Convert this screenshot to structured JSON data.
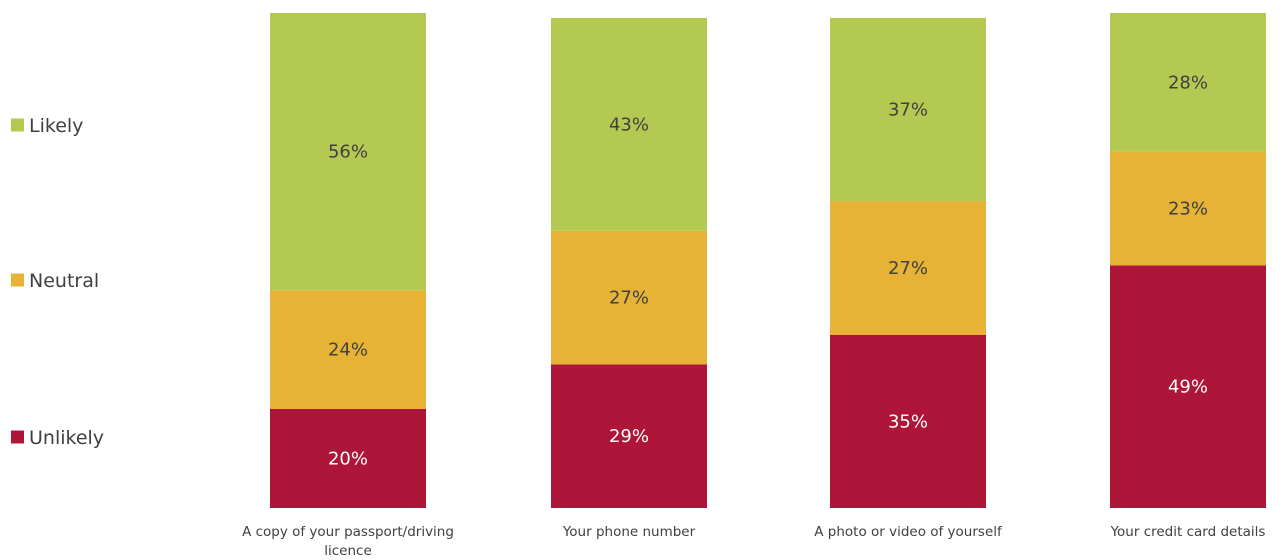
{
  "chart_data": {
    "type": "bar",
    "stacked": true,
    "normalized_percent": true,
    "categories": [
      [
        "A copy of your passport/driving",
        "licence"
      ],
      [
        "Your phone number"
      ],
      [
        "A photo or video of yourself"
      ],
      [
        "Your credit card details"
      ]
    ],
    "series": [
      {
        "name": "Unlikely",
        "color": "#ad1639",
        "label_color": "#ffffff",
        "values": [
          20,
          29,
          35,
          49
        ]
      },
      {
        "name": "Neutral",
        "color": "#e6b336",
        "label_color": "#404040",
        "values": [
          24,
          27,
          27,
          23
        ]
      },
      {
        "name": "Likely",
        "color": "#b4c952",
        "label_color": "#404040",
        "values": [
          56,
          43,
          37,
          28
        ]
      }
    ],
    "legend": {
      "position": "left",
      "order": [
        "Likely",
        "Neutral",
        "Unlikely"
      ]
    },
    "value_suffix": "%",
    "title": "",
    "xlabel": "",
    "ylabel": "",
    "ylim": [
      0,
      100
    ],
    "grid": false
  }
}
